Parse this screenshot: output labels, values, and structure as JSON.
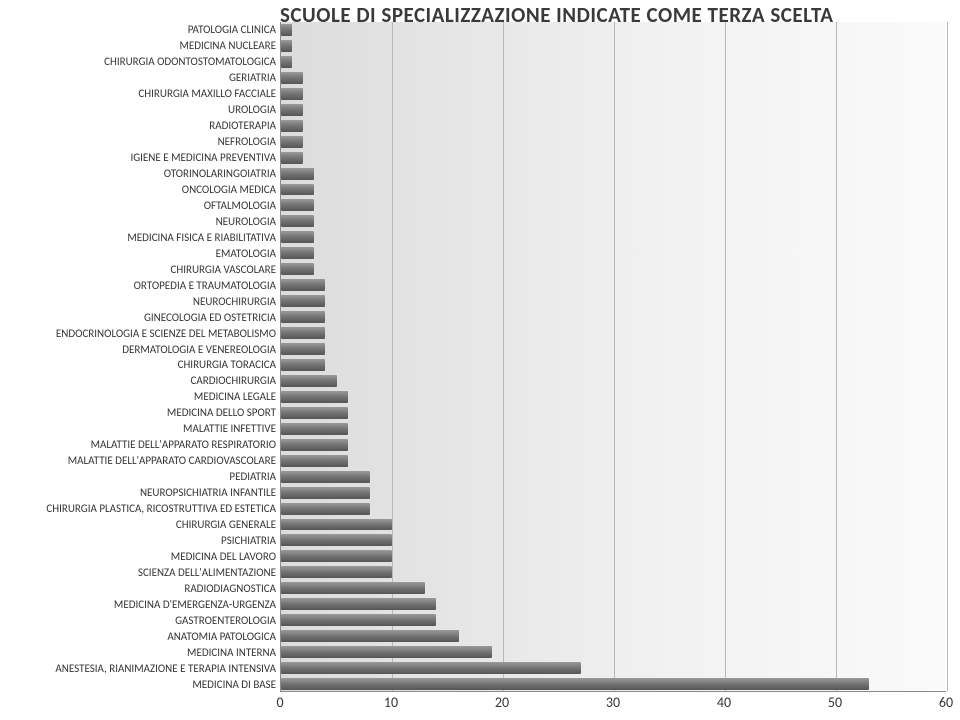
{
  "chart": {
    "type": "bar-horizontal",
    "title": "SCUOLE DI SPECIALIZZAZIONE INDICATE COME TERZA SCELTA",
    "title_fontsize": 21,
    "title_color": "#3a3a3a",
    "label_fontsize": 11,
    "tick_fontsize": 14,
    "background_gradient": [
      "#dcdcdc",
      "#f2f2f2",
      "#fafafa"
    ],
    "grid_color": "#b8b8b8",
    "bar_gradient": [
      "#9a9a9a",
      "#777777",
      "#555555"
    ],
    "xlim": [
      0,
      60
    ],
    "xtick_step": 10,
    "xticks": [
      0,
      10,
      20,
      30,
      40,
      50,
      60
    ],
    "items": [
      {
        "label": "PATOLOGIA CLINICA",
        "value": 1
      },
      {
        "label": "MEDICINA NUCLEARE",
        "value": 1
      },
      {
        "label": "CHIRURGIA ODONTOSTOMATOLOGICA",
        "value": 1
      },
      {
        "label": "GERIATRIA",
        "value": 2
      },
      {
        "label": "CHIRURGIA MAXILLO FACCIALE",
        "value": 2
      },
      {
        "label": "UROLOGIA",
        "value": 2
      },
      {
        "label": "RADIOTERAPIA",
        "value": 2
      },
      {
        "label": "NEFROLOGIA",
        "value": 2
      },
      {
        "label": "IGIENE E MEDICINA PREVENTIVA",
        "value": 2
      },
      {
        "label": "OTORINOLARINGOIATRIA",
        "value": 3
      },
      {
        "label": "ONCOLOGIA MEDICA",
        "value": 3
      },
      {
        "label": "OFTALMOLOGIA",
        "value": 3
      },
      {
        "label": "NEUROLOGIA",
        "value": 3
      },
      {
        "label": "MEDICINA FISICA E RIABILITATIVA",
        "value": 3
      },
      {
        "label": "EMATOLOGIA",
        "value": 3
      },
      {
        "label": "CHIRURGIA VASCOLARE",
        "value": 3
      },
      {
        "label": "ORTOPEDIA E TRAUMATOLOGIA",
        "value": 4
      },
      {
        "label": "NEUROCHIRURGIA",
        "value": 4
      },
      {
        "label": "GINECOLOGIA ED OSTETRICIA",
        "value": 4
      },
      {
        "label": "ENDOCRINOLOGIA E SCIENZE DEL METABOLISMO",
        "value": 4
      },
      {
        "label": "DERMATOLOGIA E VENEREOLOGIA",
        "value": 4
      },
      {
        "label": "CHIRURGIA TORACICA",
        "value": 4
      },
      {
        "label": "CARDIOCHIRURGIA",
        "value": 5
      },
      {
        "label": "MEDICINA LEGALE",
        "value": 6
      },
      {
        "label": "MEDICINA DELLO SPORT",
        "value": 6
      },
      {
        "label": "MALATTIE INFETTIVE",
        "value": 6
      },
      {
        "label": "MALATTIE DELL'APPARATO RESPIRATORIO",
        "value": 6
      },
      {
        "label": "MALATTIE DELL'APPARATO CARDIOVASCOLARE",
        "value": 6
      },
      {
        "label": "PEDIATRIA",
        "value": 8
      },
      {
        "label": "NEUROPSICHIATRIA INFANTILE",
        "value": 8
      },
      {
        "label": "CHIRURGIA PLASTICA, RICOSTRUTTIVA ED ESTETICA",
        "value": 8
      },
      {
        "label": "CHIRURGIA GENERALE",
        "value": 10
      },
      {
        "label": "PSICHIATRIA",
        "value": 10
      },
      {
        "label": "MEDICINA DEL LAVORO",
        "value": 10
      },
      {
        "label": "SCIENZA DELL'ALIMENTAZIONE",
        "value": 10
      },
      {
        "label": "RADIODIAGNOSTICA",
        "value": 13
      },
      {
        "label": "MEDICINA D'EMERGENZA-URGENZA",
        "value": 14
      },
      {
        "label": "GASTROENTEROLOGIA",
        "value": 14
      },
      {
        "label": "ANATOMIA PATOLOGICA",
        "value": 16
      },
      {
        "label": "MEDICINA INTERNA",
        "value": 19
      },
      {
        "label": "ANESTESIA, RIANIMAZIONE E TERAPIA INTENSIVA",
        "value": 27
      },
      {
        "label": "MEDICINA DI BASE",
        "value": 53
      }
    ]
  }
}
